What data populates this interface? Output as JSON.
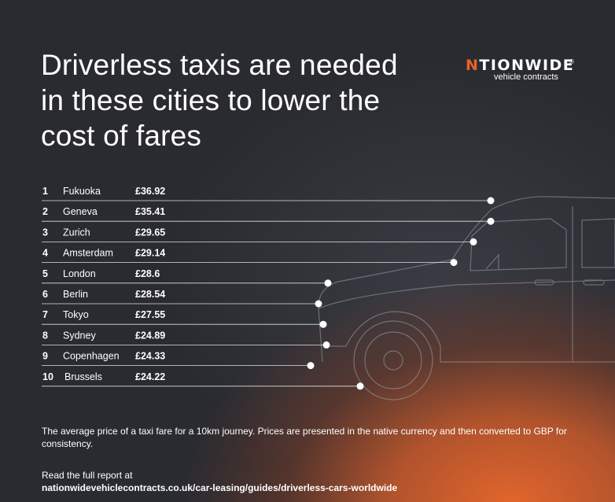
{
  "header": {
    "title": "Driverless taxis are needed in these cities to lower the cost of fares"
  },
  "logo": {
    "wordmark_pin": "N",
    "wordmark_rest": "TIONWIDE",
    "subtitle": "vehicle contracts",
    "reg": "®",
    "pin_color": "#e8622a",
    "icon": "uk-map-pin-icon"
  },
  "chart_data": {
    "type": "table",
    "columns": [
      "rank",
      "city",
      "price"
    ],
    "rows": [
      {
        "rank": "1",
        "city": "Fukuoka",
        "price": "£36.92",
        "value": 36.92
      },
      {
        "rank": "2",
        "city": "Geneva",
        "price": "£35.41",
        "value": 35.41
      },
      {
        "rank": "3",
        "city": "Zurich",
        "price": "£29.65",
        "value": 29.65
      },
      {
        "rank": "4",
        "city": "Amsterdam",
        "price": "£29.14",
        "value": 29.14
      },
      {
        "rank": "5",
        "city": "London",
        "price": "£28.6",
        "value": 28.6
      },
      {
        "rank": "6",
        "city": "Berlin",
        "price": "£28.54",
        "value": 28.54
      },
      {
        "rank": "7",
        "city": "Tokyo",
        "price": "£27.55",
        "value": 27.55
      },
      {
        "rank": "8",
        "city": "Sydney",
        "price": "£24.89",
        "value": 24.89
      },
      {
        "rank": "9",
        "city": "Copenhagen",
        "price": "£24.33",
        "value": 24.33
      },
      {
        "rank": "10",
        "city": "Brussels",
        "price": "£24.22",
        "value": 24.22
      }
    ],
    "background_image": "taxi-wireframe-illustration"
  },
  "footer": {
    "note": "The average price of a taxi fare for a 10km journey. Prices are presented in the native currency and then converted to GBP for consistency.",
    "read_more": "Read the full report at",
    "url": "nationwidevehiclecontracts.co.uk/car-leasing/guides/driverless-cars-worldwide"
  }
}
